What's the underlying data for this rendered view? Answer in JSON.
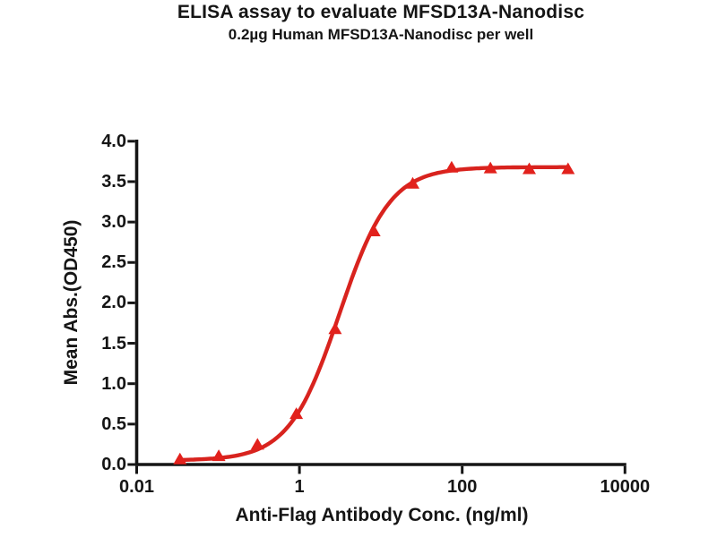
{
  "header": {
    "title": "ELISA assay to evaluate MFSD13A-Nanodisc",
    "subtitle": "0.2µg Human MFSD13A-Nanodisc per well"
  },
  "chart_data": {
    "type": "scatter",
    "title": "ELISA assay to evaluate MFSD13A-Nanodisc",
    "subtitle": "0.2µg Human MFSD13A-Nanodisc per well",
    "xlabel": "Anti-Flag Antibody Conc. (ng/ml)",
    "ylabel": "Mean Abs.(OD450)",
    "x_scale": "log",
    "xlim": [
      0.01,
      10000
    ],
    "ylim": [
      0.0,
      4.0
    ],
    "grid": "off",
    "legend": "none",
    "x": [
      0.034,
      0.102,
      0.305,
      0.914,
      2.743,
      8.23,
      24.69,
      74.07,
      222.2,
      666.7,
      2000
    ],
    "y": [
      0.07,
      0.11,
      0.25,
      0.63,
      1.68,
      2.89,
      3.48,
      3.68,
      3.67,
      3.66,
      3.66
    ],
    "x_tick_values": [
      0.01,
      1,
      100,
      10000
    ],
    "x_tick_labels": [
      "0.01",
      "1",
      "100",
      "10000"
    ],
    "y_tick_values": [
      0.0,
      0.5,
      1.0,
      1.5,
      2.0,
      2.5,
      3.0,
      3.5,
      4.0
    ],
    "y_tick_labels": [
      "0.0",
      "0.5",
      "1.0",
      "1.5",
      "2.0",
      "2.5",
      "3.0",
      "3.5",
      "4.0"
    ],
    "fit_curve": {
      "model": "4PL",
      "bottom": 0.05,
      "top": 3.68,
      "ec50": 3.1,
      "hill": 1.4
    },
    "marker": "triangle-up",
    "colors": {
      "series": "#e2211c",
      "line": "#d8231e",
      "axis": "#151515",
      "text": "#151515"
    }
  }
}
